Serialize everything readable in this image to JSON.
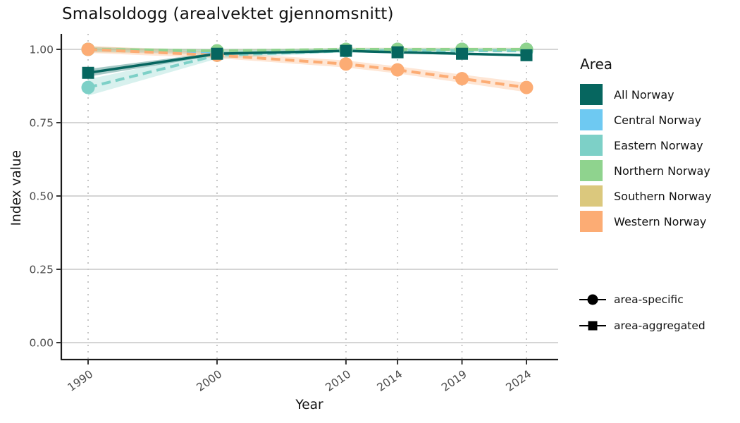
{
  "chart_data": {
    "type": "line",
    "title": "Smalsoldogg (arealvektet gjennomsnitt)",
    "xlabel": "Year",
    "ylabel": "Index value",
    "x": [
      1990,
      2000,
      2010,
      2014,
      2019,
      2024
    ],
    "x_ticks": [
      {
        "v": 1990,
        "label": "1990"
      },
      {
        "v": 2000,
        "label": "2000"
      },
      {
        "v": 2010,
        "label": "2010"
      },
      {
        "v": 2014,
        "label": "2014"
      },
      {
        "v": 2019,
        "label": "2019"
      },
      {
        "v": 2024,
        "label": "2024"
      }
    ],
    "y_ticks": [
      {
        "v": 0.0,
        "label": "0.00"
      },
      {
        "v": 0.25,
        "label": "0.25"
      },
      {
        "v": 0.5,
        "label": "0.50"
      },
      {
        "v": 0.75,
        "label": "0.75"
      },
      {
        "v": 1.0,
        "label": "1.00"
      }
    ],
    "xlim": [
      1990,
      2024
    ],
    "ylim": [
      0,
      1
    ],
    "series": [
      {
        "name": "All Norway",
        "color": "#06665F",
        "marker": "square",
        "line": "solid",
        "role": "area-aggregated",
        "values": [
          0.92,
          0.985,
          0.995,
          0.99,
          0.985,
          0.98
        ],
        "ci": [
          0.013,
          0.005,
          0.004,
          0.004,
          0.004,
          0.004
        ]
      },
      {
        "name": "Central Norway",
        "color": "#6EC9F2",
        "marker": "circle",
        "line": "dashed",
        "role": "area-specific",
        "values": [
          1.0,
          0.99,
          1.0,
          1.0,
          1.0,
          1.0
        ],
        "ci": [
          0.008,
          0.006,
          0.004,
          0.004,
          0.004,
          0.004
        ]
      },
      {
        "name": "Eastern Norway",
        "color": "#7DD0C7",
        "marker": "circle",
        "line": "dashed",
        "role": "area-specific",
        "values": [
          0.87,
          0.98,
          0.995,
          0.995,
          0.995,
          0.995
        ],
        "ci": [
          0.028,
          0.012,
          0.005,
          0.005,
          0.005,
          0.005
        ]
      },
      {
        "name": "Northern Norway",
        "color": "#8FD38E",
        "marker": "circle",
        "line": "dashed",
        "role": "area-specific",
        "values": [
          1.0,
          0.995,
          1.0,
          1.0,
          1.0,
          1.0
        ],
        "ci": [
          0.007,
          0.005,
          0.004,
          0.004,
          0.004,
          0.004
        ]
      },
      {
        "name": "Southern Norway",
        "color": "#DBC87D",
        "marker": "circle",
        "line": "dashed",
        "role": "area-specific",
        "values": [
          1.0,
          0.99,
          1.0,
          1.0,
          1.0,
          1.0
        ],
        "ci": [
          0.01,
          0.008,
          0.006,
          0.006,
          0.006,
          0.006
        ]
      },
      {
        "name": "Western Norway",
        "color": "#FCAC74",
        "marker": "circle",
        "line": "dashed",
        "role": "area-specific",
        "values": [
          1.0,
          0.98,
          0.95,
          0.93,
          0.9,
          0.87
        ],
        "ci": [
          0.012,
          0.01,
          0.012,
          0.012,
          0.014,
          0.016
        ]
      }
    ],
    "legend": {
      "title": "Area",
      "position": "right"
    },
    "shape_legend": {
      "items": [
        {
          "label": "area-specific",
          "marker": "circle"
        },
        {
          "label": "area-aggregated",
          "marker": "square"
        }
      ]
    },
    "layout": {
      "background": "#ffffff",
      "grid_horizontal": {
        "style": "solid",
        "color": "#d5d5d5"
      },
      "grid_vertical": {
        "style": "dotted",
        "color": "#c7c7c7"
      },
      "axis_color": "#1a1a1a",
      "tick_label_color": "#4d4d4d",
      "x_tick_angle": -35,
      "draw_order": [
        "Southern Norway",
        "Eastern Norway",
        "Central Norway",
        "Northern Norway",
        "Western Norway",
        "All Norway"
      ]
    }
  }
}
